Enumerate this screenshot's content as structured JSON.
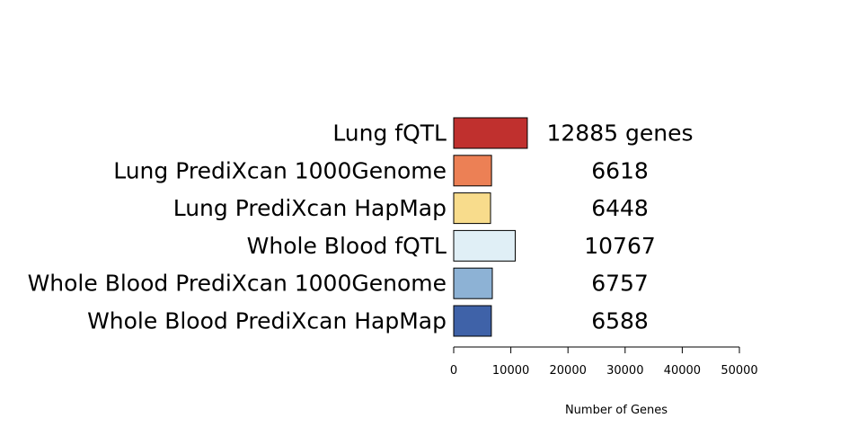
{
  "chart_data": {
    "type": "bar",
    "orientation": "horizontal",
    "categories": [
      "Lung fQTL",
      "Lung PrediXcan 1000Genome",
      "Lung PrediXcan HapMap",
      "Whole Blood fQTL",
      "Whole Blood PrediXcan 1000Genome",
      "Whole Blood PrediXcan HapMap"
    ],
    "values": [
      12885,
      6618,
      6448,
      10767,
      6757,
      6588
    ],
    "value_labels": [
      "12885 genes",
      "6618",
      "6448",
      "10767",
      "6757",
      "6588"
    ],
    "colors": [
      "#c0302e",
      "#ec8055",
      "#f8dc8c",
      "#e0eff6",
      "#8db2d5",
      "#3f62a8"
    ],
    "title": "",
    "xlabel": "Number of Genes",
    "ylabel": "",
    "xlim": [
      0,
      50000
    ],
    "ticks": [
      0,
      10000,
      20000,
      30000,
      40000,
      50000
    ],
    "tick_labels": [
      "0",
      "10000",
      "20000",
      "30000",
      "40000",
      "50000"
    ],
    "grid": false,
    "legend": "none"
  }
}
